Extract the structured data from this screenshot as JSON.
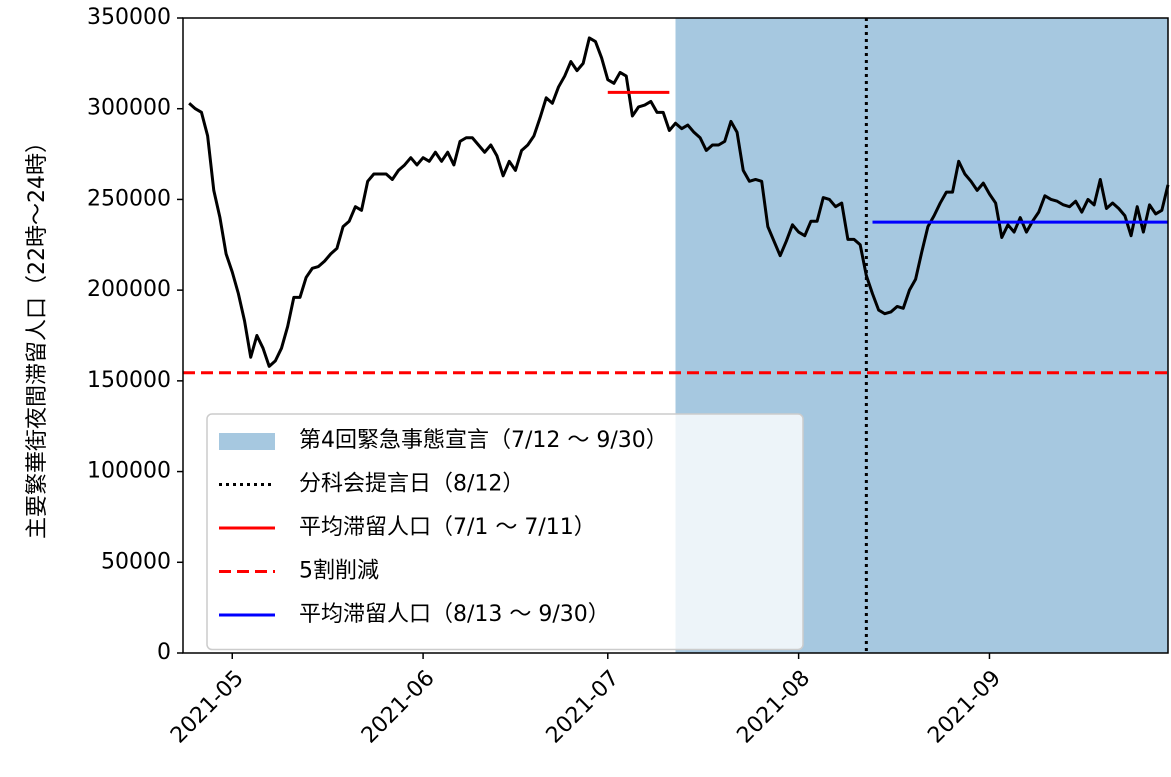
{
  "chart_data": {
    "type": "line",
    "ylabel": "主要繁華街夜間滞留人口（22時～24時）",
    "xlim": [
      18740,
      18900
    ],
    "ylim": [
      0,
      350000
    ],
    "xticks": [
      {
        "value": 18748,
        "label": "2021-05"
      },
      {
        "value": 18779,
        "label": "2021-06"
      },
      {
        "value": 18809,
        "label": "2021-07"
      },
      {
        "value": 18840,
        "label": "2021-08"
      },
      {
        "value": 18871,
        "label": "2021-09"
      }
    ],
    "yticks": [
      0,
      50000,
      100000,
      150000,
      200000,
      250000,
      300000,
      350000
    ],
    "spans": [
      {
        "name": "第4回緊急事態宣言（7/12 ～ 9/30）",
        "start": 18820,
        "end": 18900,
        "color": "#a6c8e0"
      }
    ],
    "vlines": [
      {
        "name": "分科会提言日（8/12）",
        "x": 18851,
        "color": "#000000",
        "style": "dotted"
      }
    ],
    "hlines": [
      {
        "name": "平均滞留人口（7/1 ～ 7/11）",
        "y": 309000,
        "xmin": 18809,
        "xmax": 18819,
        "color": "#ff0000",
        "style": "solid"
      },
      {
        "name": "5割削減",
        "y": 154500,
        "color": "#ff0000",
        "style": "dashed"
      },
      {
        "name": "平均滞留人口（8/13 ～ 9/30）",
        "y": 237500,
        "xmin": 18852,
        "xmax": 18900,
        "color": "#0000ff",
        "style": "solid"
      }
    ],
    "series": [
      {
        "color": "#000000",
        "x": [
          18741,
          18742,
          18743,
          18744,
          18745,
          18746,
          18747,
          18748,
          18749,
          18750,
          18751,
          18752,
          18753,
          18754,
          18755,
          18756,
          18757,
          18758,
          18759,
          18760,
          18761,
          18762,
          18763,
          18764,
          18765,
          18766,
          18767,
          18768,
          18769,
          18770,
          18771,
          18772,
          18773,
          18774,
          18775,
          18776,
          18777,
          18778,
          18779,
          18780,
          18781,
          18782,
          18783,
          18784,
          18785,
          18786,
          18787,
          18788,
          18789,
          18790,
          18791,
          18792,
          18793,
          18794,
          18795,
          18796,
          18797,
          18798,
          18799,
          18800,
          18801,
          18802,
          18803,
          18804,
          18805,
          18806,
          18807,
          18808,
          18809,
          18810,
          18811,
          18812,
          18813,
          18814,
          18815,
          18816,
          18817,
          18818,
          18819,
          18820,
          18821,
          18822,
          18823,
          18824,
          18825,
          18826,
          18827,
          18828,
          18829,
          18830,
          18831,
          18832,
          18833,
          18834,
          18835,
          18836,
          18837,
          18838,
          18839,
          18840,
          18841,
          18842,
          18843,
          18844,
          18845,
          18846,
          18847,
          18848,
          18849,
          18850,
          18851,
          18852,
          18853,
          18854,
          18855,
          18856,
          18857,
          18858,
          18859,
          18860,
          18861,
          18862,
          18863,
          18864,
          18865,
          18866,
          18867,
          18868,
          18869,
          18870,
          18871,
          18872,
          18873,
          18874,
          18875,
          18876,
          18877,
          18878,
          18879,
          18880,
          18881,
          18882,
          18883,
          18884,
          18885,
          18886,
          18887,
          18888,
          18889,
          18890,
          18891,
          18892,
          18893,
          18894,
          18895,
          18896,
          18897,
          18898,
          18899,
          18900
        ],
        "values": [
          303000,
          300000,
          298000,
          285000,
          255000,
          240000,
          220000,
          210000,
          198000,
          183000,
          163000,
          175000,
          168000,
          158000,
          161000,
          168000,
          180000,
          196000,
          196000,
          207000,
          212000,
          213000,
          216000,
          220000,
          223000,
          235000,
          238000,
          246000,
          244000,
          260000,
          264000,
          264000,
          264000,
          261000,
          266000,
          269000,
          273000,
          269000,
          273000,
          271000,
          276000,
          271000,
          276000,
          269000,
          282000,
          284000,
          284000,
          280000,
          276000,
          280000,
          274000,
          263000,
          271000,
          266000,
          277000,
          280000,
          285000,
          295000,
          306000,
          303000,
          312000,
          318000,
          326000,
          321000,
          325000,
          339000,
          337000,
          328000,
          316000,
          314000,
          320000,
          318000,
          296000,
          301000,
          302000,
          304000,
          298000,
          298000,
          288000,
          292000,
          289000,
          291000,
          287000,
          284000,
          277000,
          280000,
          280000,
          282000,
          293000,
          287000,
          266000,
          260000,
          261000,
          260000,
          235000,
          227000,
          219000,
          227000,
          236000,
          232000,
          230000,
          238000,
          238000,
          251000,
          250000,
          246000,
          248000,
          228000,
          228000,
          225000,
          208000,
          198000,
          189000,
          187000,
          188000,
          191000,
          190000,
          200000,
          206000,
          221000,
          235000,
          241000,
          248000,
          254000,
          254000,
          271000,
          264000,
          260000,
          255000,
          259000,
          253000,
          248000,
          229000,
          236000,
          232000,
          240000,
          232000,
          238000,
          243000,
          252000,
          250000,
          249000,
          247000,
          246000,
          249000,
          243000,
          250000,
          247000,
          261000,
          245000,
          248000,
          245000,
          241000,
          230000,
          246000,
          232000,
          247000,
          242000,
          244000,
          258000
        ]
      }
    ]
  }
}
